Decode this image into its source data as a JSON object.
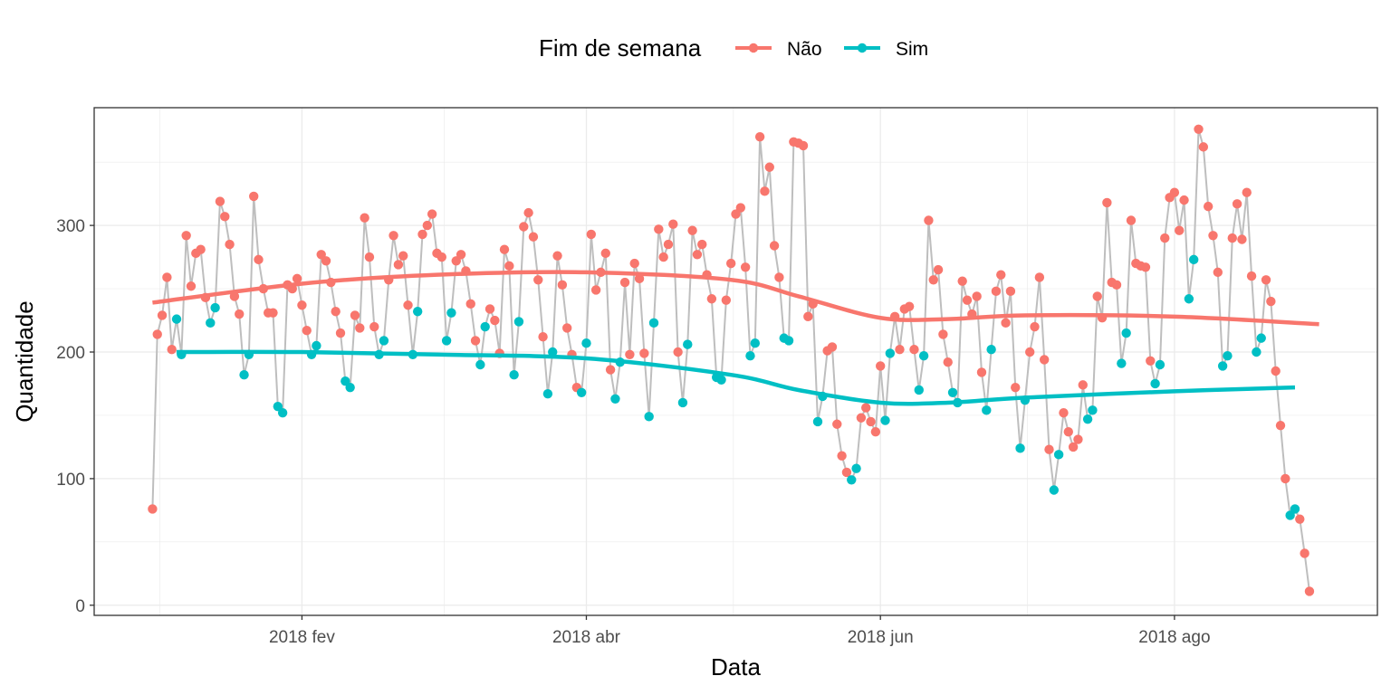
{
  "chart_data": {
    "type": "line",
    "xlabel": "Data",
    "ylabel": "Quantidade",
    "x_range": [
      "2018-01-01",
      "2018-08-31"
    ],
    "ylim": [
      -8,
      393
    ],
    "x_ticks": [
      {
        "date": "2018-02-01",
        "label": "2018 fev"
      },
      {
        "date": "2018-04-01",
        "label": "2018 abr"
      },
      {
        "date": "2018-06-01",
        "label": "2018 jun"
      },
      {
        "date": "2018-08-01",
        "label": "2018 ago"
      }
    ],
    "y_ticks": [
      0,
      100,
      200,
      300
    ],
    "grid": true,
    "legend": {
      "title": "Fim de semana",
      "position": "top",
      "entries": [
        {
          "label": "Não",
          "color": "#F8766D"
        },
        {
          "label": "Sim",
          "color": "#00BFC4"
        }
      ]
    },
    "connecting_line_color": "#BEBEBE",
    "weekend_dates_start": "2018-01-06",
    "series": [
      {
        "name": "Quantidade",
        "start_date": "2018-01-01",
        "values": [
          76,
          214,
          229,
          259,
          202,
          226,
          198,
          292,
          252,
          278,
          281,
          243,
          223,
          235,
          319,
          307,
          285,
          244,
          230,
          182,
          198,
          323,
          273,
          250,
          231,
          231,
          157,
          152,
          253,
          250,
          258,
          237,
          217,
          198,
          205,
          277,
          272,
          255,
          232,
          215,
          177,
          172,
          229,
          219,
          306,
          275,
          220,
          198,
          209,
          257,
          292,
          269,
          276,
          237,
          198,
          232,
          293,
          300,
          309,
          278,
          275,
          209,
          231,
          272,
          277,
          264,
          238,
          209,
          190,
          220,
          234,
          225,
          199,
          281,
          268,
          182,
          224,
          299,
          310,
          291,
          257,
          212,
          167,
          200,
          276,
          253,
          219,
          198,
          172,
          168,
          207,
          293,
          249,
          263,
          278,
          186,
          163,
          192,
          255,
          198,
          270,
          258,
          199,
          149,
          223,
          297,
          275,
          285,
          301,
          200,
          160,
          206,
          296,
          277,
          285,
          261,
          242,
          180,
          178,
          241,
          270,
          309,
          314,
          267,
          197,
          207,
          370,
          327,
          346,
          284,
          259,
          211,
          209,
          366,
          365,
          363,
          228,
          238,
          145,
          165,
          201,
          204,
          143,
          118,
          105,
          99,
          108,
          148,
          156,
          145,
          137,
          189,
          146,
          199,
          228,
          202,
          234,
          236,
          202,
          170,
          197,
          304,
          257,
          265,
          214,
          192,
          168,
          160,
          256,
          241,
          230,
          244,
          184,
          154,
          202,
          248,
          261,
          223,
          248,
          172,
          124,
          162,
          200,
          220,
          259,
          194,
          123,
          91,
          119,
          152,
          137,
          125,
          131,
          174,
          147,
          154,
          244,
          227,
          318,
          255,
          253,
          191,
          215,
          304,
          270,
          268,
          267,
          193,
          175,
          190,
          290,
          322,
          326,
          296,
          320,
          242,
          273,
          376,
          362,
          315,
          292,
          263,
          189,
          197,
          290,
          317,
          289,
          326,
          260,
          200,
          211,
          257,
          240,
          185,
          142,
          100,
          71,
          76,
          68,
          41,
          11
        ]
      },
      {
        "name": "Não",
        "type": "smooth",
        "x": [
          "2018-01-01",
          "2018-02-01",
          "2018-03-01",
          "2018-04-01",
          "2018-05-01",
          "2018-05-15",
          "2018-06-01",
          "2018-06-15",
          "2018-07-01",
          "2018-08-01",
          "2018-08-31"
        ],
        "values": [
          239,
          254,
          261,
          263,
          257,
          244,
          227,
          226,
          229,
          228,
          222
        ]
      },
      {
        "name": "Sim",
        "type": "smooth",
        "x": [
          "2018-01-06",
          "2018-02-01",
          "2018-03-01",
          "2018-04-01",
          "2018-05-01",
          "2018-05-15",
          "2018-06-01",
          "2018-06-15",
          "2018-07-01",
          "2018-08-01",
          "2018-08-26"
        ],
        "values": [
          200,
          200,
          198,
          195,
          182,
          170,
          160,
          160,
          164,
          169,
          172
        ]
      }
    ]
  }
}
